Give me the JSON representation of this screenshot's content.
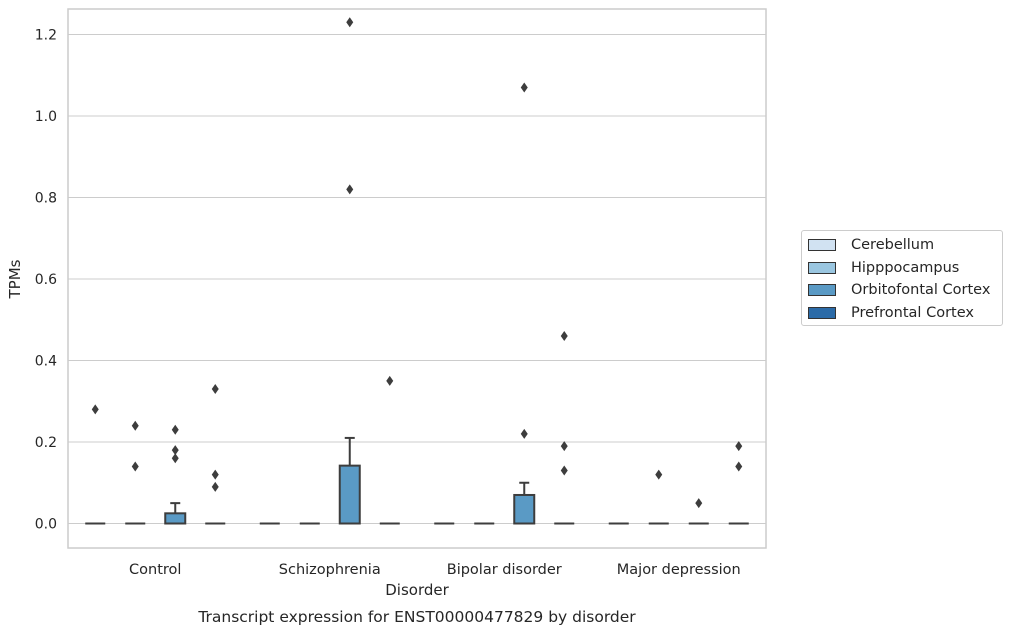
{
  "chart_data": {
    "type": "box",
    "title": "Transcript expression for ENST00000477829 by disorder",
    "xlabel": "Disorder",
    "ylabel": "TPMs",
    "ylim": [
      -0.06,
      1.29
    ],
    "yticks": [
      0.0,
      0.2,
      0.4,
      0.6,
      0.8,
      1.0,
      1.2
    ],
    "ytick_labels": [
      "0.0",
      "0.2",
      "0.4",
      "0.6",
      "0.8",
      "1.0",
      "1.2"
    ],
    "grid": "horizontal",
    "legend_position": "right-outside",
    "categories": [
      "Control",
      "Schizophrenia",
      "Bipolar disorder",
      "Major depression"
    ],
    "series": [
      {
        "name": "Cerebellum",
        "color": "#d1e2f2",
        "boxes": [
          {
            "q1": 0,
            "median": 0,
            "q3": 0,
            "whisker_low": 0,
            "whisker_high": 0,
            "outliers": [
              0.28
            ]
          },
          {
            "q1": 0,
            "median": 0,
            "q3": 0,
            "whisker_low": 0,
            "whisker_high": 0,
            "outliers": []
          },
          {
            "q1": 0,
            "median": 0,
            "q3": 0,
            "whisker_low": 0,
            "whisker_high": 0,
            "outliers": []
          },
          {
            "q1": 0,
            "median": 0,
            "q3": 0,
            "whisker_low": 0,
            "whisker_high": 0,
            "outliers": []
          }
        ]
      },
      {
        "name": "Hipppocampus",
        "color": "#9ac6e0",
        "boxes": [
          {
            "q1": 0,
            "median": 0,
            "q3": 0,
            "whisker_low": 0,
            "whisker_high": 0,
            "outliers": [
              0.24,
              0.14
            ]
          },
          {
            "q1": 0,
            "median": 0,
            "q3": 0,
            "whisker_low": 0,
            "whisker_high": 0,
            "outliers": []
          },
          {
            "q1": 0,
            "median": 0,
            "q3": 0,
            "whisker_low": 0,
            "whisker_high": 0,
            "outliers": []
          },
          {
            "q1": 0,
            "median": 0,
            "q3": 0,
            "whisker_low": 0,
            "whisker_high": 0,
            "outliers": [
              0.12
            ]
          }
        ]
      },
      {
        "name": "Orbitofontal Cortex",
        "color": "#5a9ac5",
        "boxes": [
          {
            "q1": 0,
            "median": 0,
            "q3": 0.025,
            "whisker_low": 0,
            "whisker_high": 0.05,
            "outliers": [
              0.23,
              0.18,
              0.16
            ]
          },
          {
            "q1": 0,
            "median": 0,
            "q3": 0.142,
            "whisker_low": 0,
            "whisker_high": 0.21,
            "outliers": [
              1.23,
              0.82
            ]
          },
          {
            "q1": 0,
            "median": 0,
            "q3": 0.07,
            "whisker_low": 0,
            "whisker_high": 0.1,
            "outliers": [
              1.07,
              0.22
            ]
          },
          {
            "q1": 0,
            "median": 0,
            "q3": 0,
            "whisker_low": 0,
            "whisker_high": 0,
            "outliers": [
              0.05
            ]
          }
        ]
      },
      {
        "name": "Prefrontal Cortex",
        "color": "#2b6ba8",
        "boxes": [
          {
            "q1": 0,
            "median": 0,
            "q3": 0,
            "whisker_low": 0,
            "whisker_high": 0,
            "outliers": [
              0.33,
              0.12,
              0.09
            ]
          },
          {
            "q1": 0,
            "median": 0,
            "q3": 0,
            "whisker_low": 0,
            "whisker_high": 0,
            "outliers": [
              0.35
            ]
          },
          {
            "q1": 0,
            "median": 0,
            "q3": 0,
            "whisker_low": 0,
            "whisker_high": 0,
            "outliers": [
              0.46,
              0.19,
              0.13
            ]
          },
          {
            "q1": 0,
            "median": 0,
            "q3": 0,
            "whisker_low": 0,
            "whisker_high": 0,
            "outliers": [
              0.19,
              0.14
            ]
          }
        ]
      }
    ]
  }
}
